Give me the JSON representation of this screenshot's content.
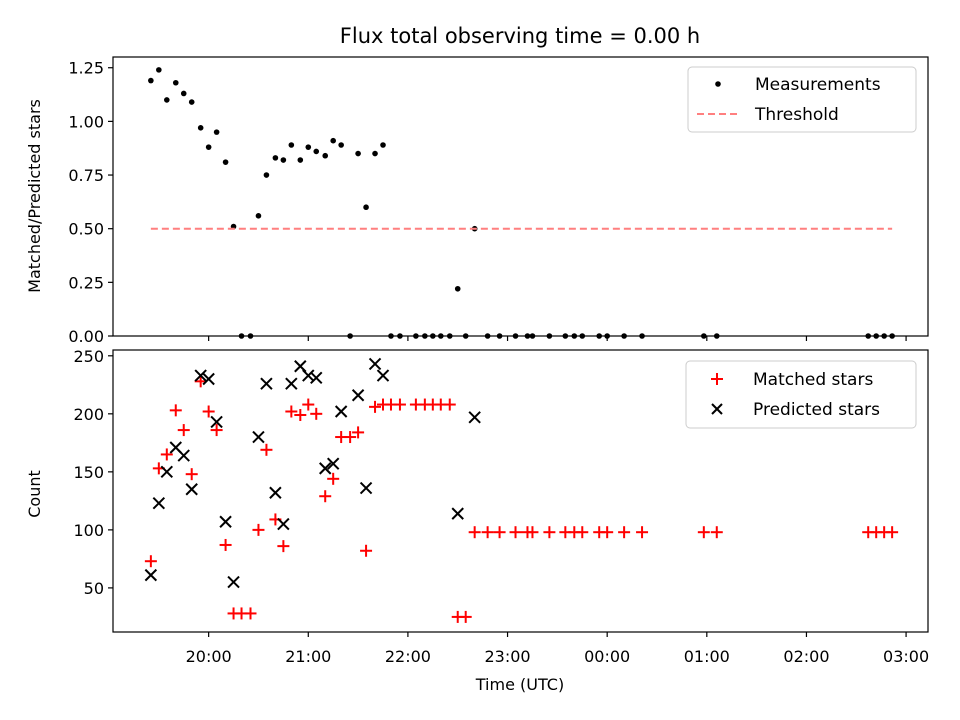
{
  "figure": {
    "title": "Flux total observing time = 0.00 h",
    "xlabel": "Time (UTC)",
    "x_ticks": [
      "20:00",
      "21:00",
      "22:00",
      "23:00",
      "00:00",
      "01:00",
      "02:00",
      "03:00"
    ]
  },
  "chart_data": [
    {
      "type": "scatter",
      "title": "Flux total observing time = 0.00 h",
      "xlabel": "",
      "ylabel": "Matched/Predicted stars",
      "ylim": [
        0,
        1.3
      ],
      "yticks": [
        "0.00",
        "0.25",
        "0.50",
        "0.75",
        "1.00",
        "1.25"
      ],
      "x_unit": "hours since 19:00 UTC (axis labels 20:00–03:00)",
      "xlim": [
        0.04,
        8.22
      ],
      "legend": {
        "position": "top-right",
        "entries": [
          "Measurements",
          "Threshold"
        ]
      },
      "series": [
        {
          "name": "Measurements",
          "marker": "dot",
          "color": "#000000",
          "points": [
            [
              0.42,
              1.19
            ],
            [
              0.5,
              1.24
            ],
            [
              0.58,
              1.1
            ],
            [
              0.67,
              1.18
            ],
            [
              0.75,
              1.13
            ],
            [
              0.83,
              1.09
            ],
            [
              0.92,
              0.97
            ],
            [
              1.0,
              0.88
            ],
            [
              1.08,
              0.95
            ],
            [
              1.17,
              0.81
            ],
            [
              1.25,
              0.51
            ],
            [
              1.33,
              0
            ],
            [
              1.42,
              0
            ],
            [
              1.5,
              0.56
            ],
            [
              1.58,
              0.75
            ],
            [
              1.67,
              0.83
            ],
            [
              1.75,
              0.82
            ],
            [
              1.83,
              0.89
            ],
            [
              1.92,
              0.82
            ],
            [
              2.0,
              0.88
            ],
            [
              2.08,
              0.86
            ],
            [
              2.17,
              0.84
            ],
            [
              2.25,
              0.91
            ],
            [
              2.33,
              0.89
            ],
            [
              2.42,
              0
            ],
            [
              2.5,
              0.85
            ],
            [
              2.58,
              0.6
            ],
            [
              2.67,
              0.85
            ],
            [
              2.75,
              0.89
            ],
            [
              2.83,
              0
            ],
            [
              2.92,
              0
            ],
            [
              3.08,
              0
            ],
            [
              3.17,
              0
            ],
            [
              3.25,
              0
            ],
            [
              3.33,
              0
            ],
            [
              3.42,
              0
            ],
            [
              3.5,
              0.22
            ],
            [
              3.58,
              0
            ],
            [
              3.67,
              0.5
            ],
            [
              3.8,
              0
            ],
            [
              3.92,
              0
            ],
            [
              4.08,
              0
            ],
            [
              4.2,
              0
            ],
            [
              4.25,
              0
            ],
            [
              4.42,
              0
            ],
            [
              4.58,
              0
            ],
            [
              4.67,
              0
            ],
            [
              4.75,
              0
            ],
            [
              4.92,
              0
            ],
            [
              5.0,
              0
            ],
            [
              5.17,
              0
            ],
            [
              5.35,
              0
            ],
            [
              5.97,
              0
            ],
            [
              6.1,
              0
            ],
            [
              7.62,
              0
            ],
            [
              7.7,
              0
            ],
            [
              7.78,
              0
            ],
            [
              7.86,
              0
            ]
          ]
        },
        {
          "name": "Threshold",
          "style": "dashed",
          "color": "#ff7f7f",
          "points": [
            [
              0.42,
              0.5
            ],
            [
              7.86,
              0.5
            ]
          ]
        }
      ]
    },
    {
      "type": "scatter",
      "title": "",
      "xlabel": "Time (UTC)",
      "ylabel": "Count",
      "ylim": [
        12,
        255
      ],
      "yticks": [
        "50",
        "100",
        "150",
        "200",
        "250"
      ],
      "x_unit": "hours since 19:00 UTC (axis labels 20:00–03:00)",
      "xlim": [
        0.04,
        8.22
      ],
      "legend": {
        "position": "top-right",
        "entries": [
          "Matched stars",
          "Predicted stars"
        ]
      },
      "series": [
        {
          "name": "Matched stars",
          "marker": "plus",
          "color": "#ff0000",
          "points": [
            [
              0.42,
              73
            ],
            [
              0.5,
              153
            ],
            [
              0.58,
              165
            ],
            [
              0.67,
              203
            ],
            [
              0.75,
              186
            ],
            [
              0.83,
              148
            ],
            [
              0.92,
              228
            ],
            [
              1.0,
              202
            ],
            [
              1.08,
              186
            ],
            [
              1.17,
              87
            ],
            [
              1.25,
              28
            ],
            [
              1.33,
              28
            ],
            [
              1.42,
              28
            ],
            [
              1.5,
              100
            ],
            [
              1.58,
              169
            ],
            [
              1.67,
              109
            ],
            [
              1.75,
              86
            ],
            [
              1.83,
              202
            ],
            [
              1.92,
              199
            ],
            [
              2.0,
              208
            ],
            [
              2.08,
              200
            ],
            [
              2.17,
              129
            ],
            [
              2.25,
              144
            ],
            [
              2.33,
              180
            ],
            [
              2.42,
              180
            ],
            [
              2.5,
              184
            ],
            [
              2.58,
              82
            ],
            [
              2.67,
              206
            ],
            [
              2.75,
              208
            ],
            [
              2.83,
              208
            ],
            [
              2.92,
              208
            ],
            [
              3.08,
              208
            ],
            [
              3.17,
              208
            ],
            [
              3.25,
              208
            ],
            [
              3.33,
              208
            ],
            [
              3.42,
              208
            ],
            [
              3.5,
              25
            ],
            [
              3.58,
              25
            ],
            [
              3.67,
              98
            ],
            [
              3.8,
              98
            ],
            [
              3.92,
              98
            ],
            [
              4.08,
              98
            ],
            [
              4.2,
              98
            ],
            [
              4.25,
              98
            ],
            [
              4.42,
              98
            ],
            [
              4.58,
              98
            ],
            [
              4.67,
              98
            ],
            [
              4.75,
              98
            ],
            [
              4.92,
              98
            ],
            [
              5.0,
              98
            ],
            [
              5.17,
              98
            ],
            [
              5.35,
              98
            ],
            [
              5.97,
              98
            ],
            [
              6.1,
              98
            ],
            [
              7.62,
              98
            ],
            [
              7.7,
              98
            ],
            [
              7.78,
              98
            ],
            [
              7.86,
              98
            ]
          ]
        },
        {
          "name": "Predicted stars",
          "marker": "x",
          "color": "#000000",
          "points": [
            [
              0.42,
              61
            ],
            [
              0.5,
              123
            ],
            [
              0.58,
              150
            ],
            [
              0.67,
              171
            ],
            [
              0.75,
              164
            ],
            [
              0.83,
              135
            ],
            [
              0.92,
              233
            ],
            [
              1.0,
              230
            ],
            [
              1.08,
              193
            ],
            [
              1.17,
              107
            ],
            [
              1.25,
              55
            ],
            [
              1.5,
              180
            ],
            [
              1.58,
              226
            ],
            [
              1.67,
              132
            ],
            [
              1.75,
              105
            ],
            [
              1.83,
              226
            ],
            [
              1.92,
              241
            ],
            [
              2.0,
              233
            ],
            [
              2.08,
              231
            ],
            [
              2.17,
              153
            ],
            [
              2.25,
              157
            ],
            [
              2.33,
              202
            ],
            [
              2.5,
              216
            ],
            [
              2.58,
              136
            ],
            [
              2.67,
              243
            ],
            [
              2.75,
              233
            ],
            [
              3.5,
              114
            ],
            [
              3.67,
              197
            ]
          ]
        }
      ]
    }
  ]
}
